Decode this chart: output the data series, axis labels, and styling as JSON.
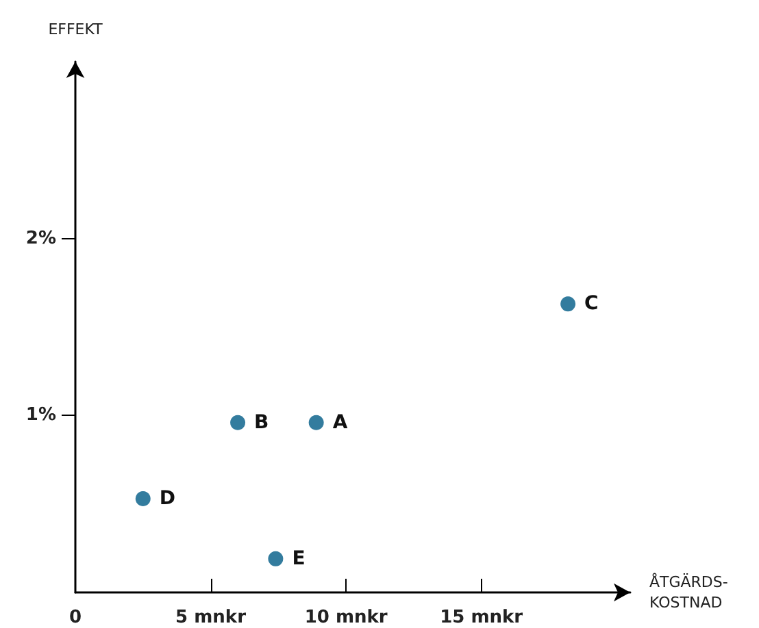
{
  "chart_data": {
    "type": "scatter",
    "xlabel": "ÅTGÄRDS-\nKOSTNAD",
    "ylabel": "EFFEKT",
    "x": [
      8.9,
      6.0,
      18.2,
      2.5,
      7.4
    ],
    "values": [
      0.96,
      0.96,
      1.63,
      0.53,
      0.19
    ],
    "color": "#005b86",
    "marker": "circle",
    "grid": false,
    "xlim": [
      0,
      20.5
    ],
    "ylim": [
      0,
      3
    ],
    "xticks": [
      {
        "value": 0,
        "label": "0"
      },
      {
        "value": 5,
        "label": "5 mnkr"
      },
      {
        "value": 10,
        "label": "10 mnkr"
      },
      {
        "value": 15,
        "label": "15 mnkr"
      }
    ],
    "yticks": [
      {
        "value": 1,
        "label": "1%"
      },
      {
        "value": 2,
        "label": "2%"
      }
    ],
    "annotations": [
      {
        "text": "A",
        "x": 8.9,
        "y": 0.96
      },
      {
        "text": "B",
        "x": 6.0,
        "y": 0.96
      },
      {
        "text": "C",
        "x": 18.2,
        "y": 1.63
      },
      {
        "text": "D",
        "x": 2.5,
        "y": 0.53
      },
      {
        "text": "E",
        "x": 7.4,
        "y": 0.19
      }
    ]
  }
}
